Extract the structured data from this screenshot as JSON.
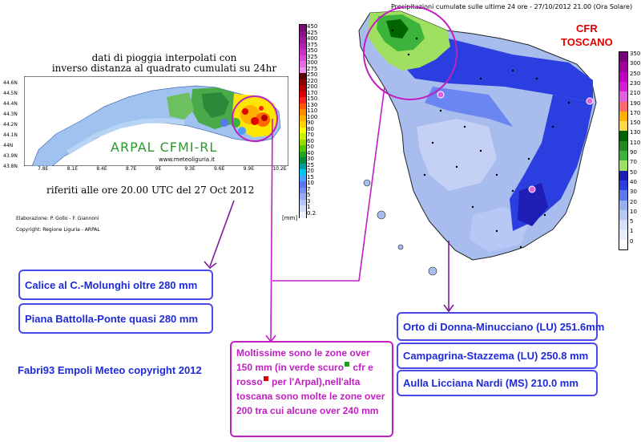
{
  "arpal": {
    "title_line1": "dati di pioggia interpolati con",
    "title_line2": "inverso distanza al quadrato cumulati su 24hr",
    "watermark": "ARPAL CFMI-RL",
    "website": "www.meteoliguria.it",
    "subtitle": "riferiti alle ore 20.00 UTC del 27 Oct 2012",
    "elaborazione": "Elaborazione: P. Gollo - F. Giannoni",
    "copyright": "Copyright: Regione Liguria - ARPAL",
    "unit": "[mm]",
    "lat_labels": [
      "44.6N",
      "44.5N",
      "44.4N",
      "44.3N",
      "44.2N",
      "44.1N",
      "44N",
      "43.9N",
      "43.8N"
    ],
    "lon_labels": [
      "7.8E",
      "8.1E",
      "8.4E",
      "8.7E",
      "9E",
      "9.3E",
      "9.6E",
      "9.9E",
      "10.2E"
    ],
    "scale": [
      {
        "label": "450",
        "color": "#7a0a7a"
      },
      {
        "label": "425",
        "color": "#8c128c"
      },
      {
        "label": "400",
        "color": "#a01aa0"
      },
      {
        "label": "375",
        "color": "#b422b4"
      },
      {
        "label": "350",
        "color": "#c830c8"
      },
      {
        "label": "325",
        "color": "#d848d8"
      },
      {
        "label": "300",
        "color": "#e868e8"
      },
      {
        "label": "275",
        "color": "#f090f0"
      },
      {
        "label": "250",
        "color": "#5a0000"
      },
      {
        "label": "220",
        "color": "#8a0000"
      },
      {
        "label": "200",
        "color": "#b40000"
      },
      {
        "label": "170",
        "color": "#e00000"
      },
      {
        "label": "150",
        "color": "#ff2020"
      },
      {
        "label": "130",
        "color": "#ff5a00"
      },
      {
        "label": "110",
        "color": "#ff8c00"
      },
      {
        "label": "100",
        "color": "#ffb000"
      },
      {
        "label": "90",
        "color": "#ffd200"
      },
      {
        "label": "80",
        "color": "#ffff00"
      },
      {
        "label": "70",
        "color": "#c8f000"
      },
      {
        "label": "60",
        "color": "#96dc00"
      },
      {
        "label": "50",
        "color": "#50c800"
      },
      {
        "label": "40",
        "color": "#20a820"
      },
      {
        "label": "30",
        "color": "#008c3c"
      },
      {
        "label": "25",
        "color": "#00a0a0"
      },
      {
        "label": "20",
        "color": "#00c8f0"
      },
      {
        "label": "15",
        "color": "#4aa0ff"
      },
      {
        "label": "10",
        "color": "#5a78f0"
      },
      {
        "label": "7",
        "color": "#7890f0"
      },
      {
        "label": "5",
        "color": "#96aaf0"
      },
      {
        "label": "3",
        "color": "#b4c4f4"
      },
      {
        "label": "1",
        "color": "#d2dcf8"
      },
      {
        "label": "0.2",
        "color": "#eef2fc"
      }
    ]
  },
  "toscana": {
    "title": "Precipitazioni cumulate sulle ultime 24 ore - 27/10/2012 21.00 (Ora Solare)",
    "cfr_line1": "CFR",
    "cfr_line2": "TOSCANO",
    "scale": [
      {
        "label": "350",
        "color": "#7a007a"
      },
      {
        "label": "300",
        "color": "#a000a0"
      },
      {
        "label": "250",
        "color": "#c000c0"
      },
      {
        "label": "230",
        "color": "#d020d0"
      },
      {
        "label": "210",
        "color": "#e060e0"
      },
      {
        "label": "190",
        "color": "#ff6b6b"
      },
      {
        "label": "170",
        "color": "#ffb000"
      },
      {
        "label": "150",
        "color": "#ffd84a"
      },
      {
        "label": "130",
        "color": "#006400"
      },
      {
        "label": "110",
        "color": "#208a20"
      },
      {
        "label": "90",
        "color": "#3cb43c"
      },
      {
        "label": "70",
        "color": "#a0e060"
      },
      {
        "label": "50",
        "color": "#1e1eb4"
      },
      {
        "label": "40",
        "color": "#2b3fe0"
      },
      {
        "label": "30",
        "color": "#5a78f0"
      },
      {
        "label": "20",
        "color": "#98b0f0"
      },
      {
        "label": "10",
        "color": "#b8c8f4"
      },
      {
        "label": "5",
        "color": "#d4e0f8"
      },
      {
        "label": "1",
        "color": "#e8eefc"
      },
      {
        "label": "0",
        "color": "#ffffff"
      }
    ]
  },
  "boxes": {
    "calice": "Calice al C.-Molunghi oltre 280 mm",
    "piana": "Piana Battolla-Ponte quasi 280 mm",
    "author": "Fabri93 Empoli Meteo copyright 2012",
    "orto": "Orto di Donna-Minucciano  (LU) 251.6mm",
    "campagrina": "Campagrina-Stazzema  (LU) 250.8 mm",
    "aulla": "Aulla Licciana Nardi (MS) 210.0 mm",
    "comment_p1": "Moltissime sono le zone over 150 mm (in verde scuro",
    "comment_p2": " cfr e rosso",
    "comment_p3": " per l'Arpal),nell'alta toscana sono molte le zone over 200 tra cui alcune over 240 mm"
  },
  "colors": {
    "annotation_purple": "#c020c0",
    "box_blue": "#1f2bd6",
    "arrow_purple": "#7a1a9a"
  }
}
